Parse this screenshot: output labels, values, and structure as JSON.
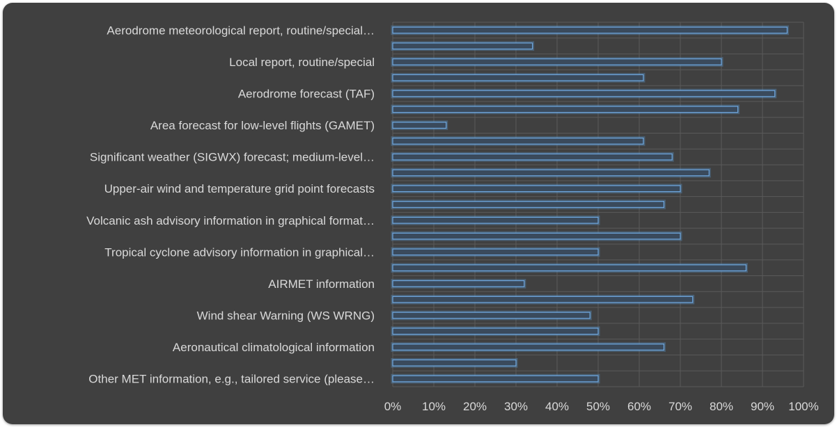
{
  "chart_data": {
    "type": "bar",
    "orientation": "horizontal",
    "categories": [
      "Aerodrome meteorological report, routine/special…",
      "",
      "Local report, routine/special",
      "",
      "Aerodrome forecast (TAF)",
      "",
      "Area forecast for low-level flights (GAMET)",
      "",
      "Significant weather (SIGWX) forecast; medium-level…",
      "",
      "Upper-air wind and temperature grid point forecasts",
      "",
      "Volcanic ash advisory information in graphical format…",
      "",
      "Tropical cyclone advisory information in graphical…",
      "",
      "AIRMET information",
      "",
      "Wind shear Warning (WS WRNG)",
      "",
      "Aeronautical climatological information",
      "",
      "Other MET information, e.g., tailored service (please…"
    ],
    "values": [
      0.96,
      0.34,
      0.8,
      0.61,
      0.93,
      0.84,
      0.13,
      0.61,
      0.68,
      0.77,
      0.7,
      0.66,
      0.5,
      0.7,
      0.5,
      0.86,
      0.32,
      0.73,
      0.48,
      0.5,
      0.66,
      0.3,
      0.5
    ],
    "xlim": [
      0,
      1
    ],
    "x_ticks": [
      "0%",
      "10%",
      "20%",
      "30%",
      "40%",
      "50%",
      "60%",
      "70%",
      "80%",
      "90%",
      "100%"
    ],
    "title": "",
    "xlabel": "",
    "ylabel": "",
    "grid": true,
    "legend": "none",
    "colors": {
      "background": "#404040",
      "bar_edge": "#6fa8e0",
      "bar_fill": "#3a4a5c",
      "text": "#d9d9d9",
      "grid": "#5a5a5a"
    }
  }
}
